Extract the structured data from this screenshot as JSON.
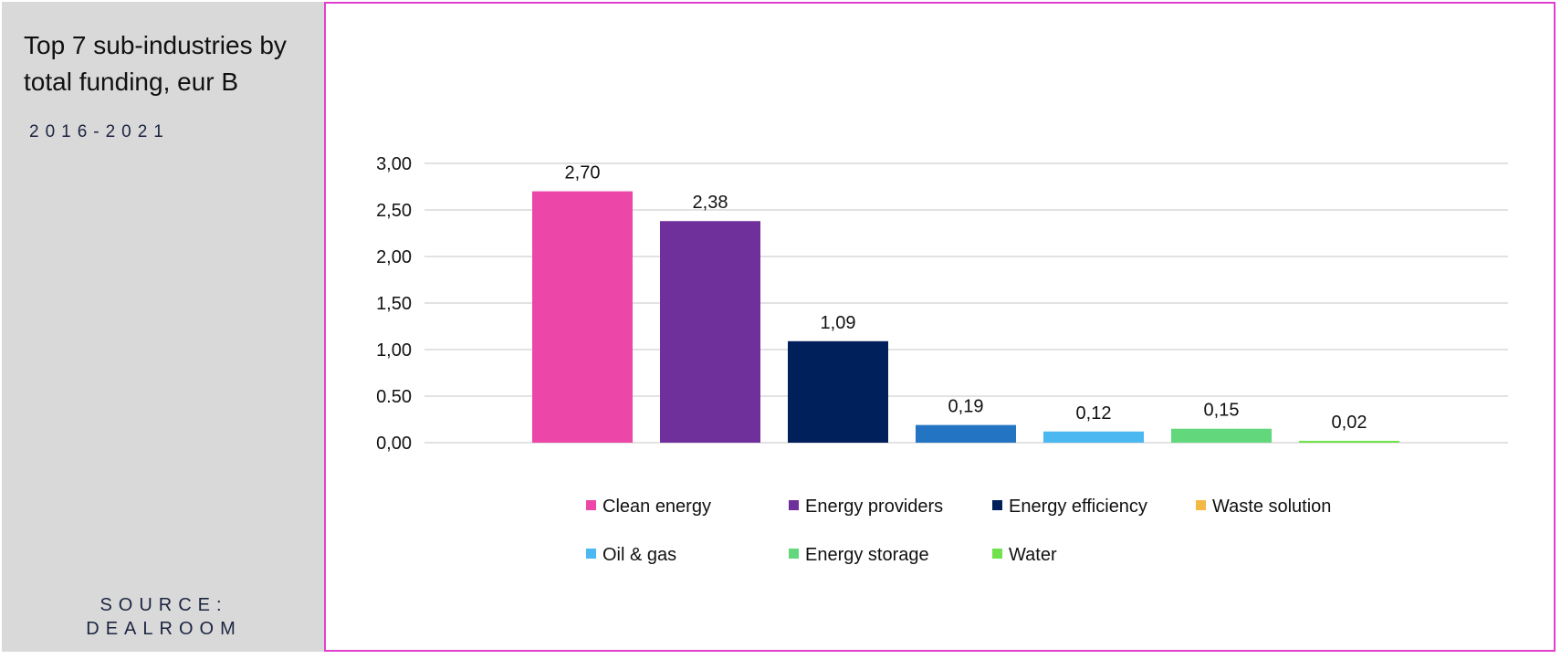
{
  "sidebar": {
    "title": "Top 7 sub-industries by total funding, eur B",
    "subtitle": "2016-2021",
    "source_line1": "SOURCE:",
    "source_line2": "DEALROOM"
  },
  "colors": {
    "frame": "#e040d0",
    "sidebar_bg": "#d9d9d9"
  },
  "chart_data": {
    "type": "bar",
    "title": "Top 7 sub-industries by total funding, eur B",
    "subtitle": "2016-2021",
    "ylim": [
      0,
      3
    ],
    "yticks": [
      "0,00",
      "0.50",
      "1,00",
      "1,50",
      "2,00",
      "2,50",
      "3,00"
    ],
    "grid": true,
    "legend_position": "bottom",
    "series": [
      {
        "name": "Clean energy",
        "value": 2.7,
        "label": "2,70",
        "color": "#ec47a8"
      },
      {
        "name": "Energy providers",
        "value": 2.38,
        "label": "2,38",
        "color": "#70309c"
      },
      {
        "name": "Energy efficiency",
        "value": 1.09,
        "label": "1,09",
        "color": "#00205c"
      },
      {
        "name": "Waste solution",
        "value": 0.19,
        "label": "0,19",
        "color": "#2474c4"
      },
      {
        "name": "Oil & gas",
        "value": 0.12,
        "label": "0,12",
        "color": "#4cb8f2"
      },
      {
        "name": "Energy storage",
        "value": 0.15,
        "label": "0,15",
        "color": "#62d77c"
      },
      {
        "name": "Water",
        "value": 0.02,
        "label": "0,02",
        "color": "#70e34c"
      }
    ],
    "legend": [
      {
        "name": "Clean energy",
        "color": "#ec47a8"
      },
      {
        "name": "Energy providers",
        "color": "#70309c"
      },
      {
        "name": "Energy efficiency",
        "color": "#00205c"
      },
      {
        "name": "Waste solution",
        "color": "#f4b942"
      },
      {
        "name": "Oil & gas",
        "color": "#4cb8f2"
      },
      {
        "name": "Energy storage",
        "color": "#62d77c"
      },
      {
        "name": "Water",
        "color": "#70e34c"
      }
    ]
  }
}
